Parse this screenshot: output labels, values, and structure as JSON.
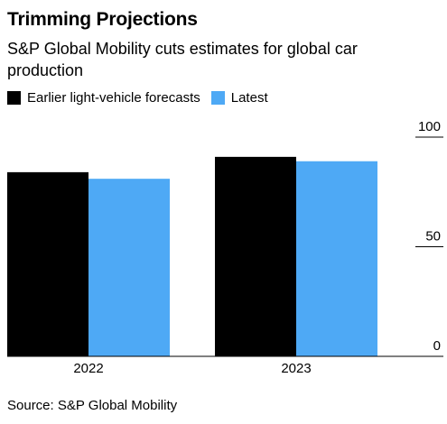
{
  "header": {
    "title": "Trimming Projections",
    "subtitle": "S&P Global Mobility cuts estimates for global car production"
  },
  "legend": [
    {
      "label": "Earlier light-vehicle forecasts",
      "color": "#000000"
    },
    {
      "label": "Latest",
      "color": "#4ea9f5"
    }
  ],
  "source": "Source: S&P Global Mobility",
  "chart_data": {
    "type": "bar",
    "title": "Trimming Projections",
    "subtitle": "S&P Global Mobility cuts estimates for global car production",
    "categories": [
      "2022",
      "2023"
    ],
    "series": [
      {
        "name": "Earlier light-vehicle forecasts",
        "color": "#000000",
        "values": [
          84,
          91
        ]
      },
      {
        "name": "Latest",
        "color": "#4ea9f5",
        "values": [
          81,
          89
        ]
      }
    ],
    "ylim": [
      0,
      100
    ],
    "yticks": [
      0,
      50,
      100
    ],
    "ytick_labels": [
      "0",
      "50",
      "100"
    ],
    "y_axis_side": "right",
    "grid": false,
    "legend_position": "top-left"
  }
}
